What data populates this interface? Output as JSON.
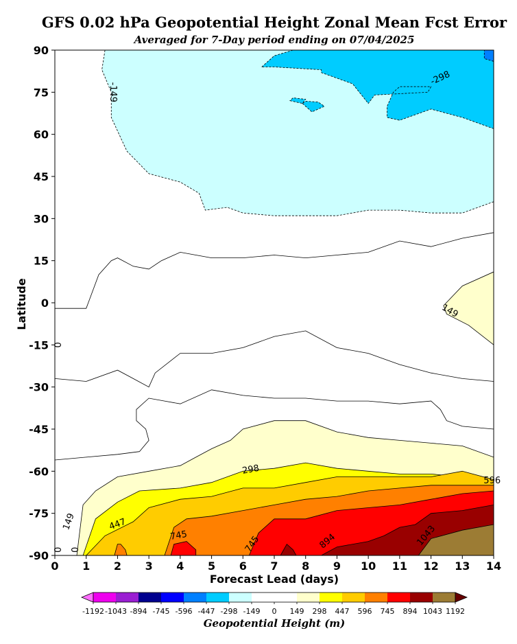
{
  "chart_data": {
    "type": "filled-contour",
    "title": "GFS 0.02 hPa Geopotential Height Zonal Mean Fcst Error",
    "subtitle": "Averaged for 7-Day period ending on 07/04/2025",
    "xlabel": "Forecast Lead (days)",
    "ylabel": "Latitude",
    "x_ticks": [
      "0",
      "1",
      "2",
      "3",
      "4",
      "5",
      "6",
      "7",
      "8",
      "9",
      "10",
      "11",
      "12",
      "13",
      "14"
    ],
    "y_ticks": [
      "90",
      "75",
      "60",
      "45",
      "30",
      "15",
      "0",
      "-15",
      "-30",
      "-45",
      "-60",
      "-75",
      "-90"
    ],
    "xlim": [
      0,
      14
    ],
    "ylim": [
      -90,
      90
    ],
    "colorbar": {
      "label": "Geopotential Height (m)",
      "ticks": [
        "-1192",
        "-1043",
        "-894",
        "-745",
        "-596",
        "-447",
        "-298",
        "-149",
        "0",
        "149",
        "298",
        "447",
        "596",
        "745",
        "894",
        "1043",
        "1192"
      ],
      "colors": [
        "#ee00ee",
        "#9a1ed2",
        "#00008e",
        "#0000ff",
        "#0080ff",
        "#00ccff",
        "#ccffff",
        "#ffffff",
        "#ffffff",
        "#ffffcc",
        "#ffff00",
        "#ffcc00",
        "#ff8000",
        "#ff0000",
        "#990000",
        "#9c7c34"
      ],
      "under_color": "#ff6eff",
      "over_color": "#660000"
    },
    "levels": [
      -1192,
      -1043,
      -894,
      -745,
      -596,
      -447,
      -298,
      -149,
      0,
      149,
      298,
      447,
      596,
      745,
      894,
      1043,
      1192
    ],
    "contour_labels": [
      "-298",
      "-149",
      "0",
      "0",
      "0",
      "149",
      "149",
      "298",
      "447",
      "596",
      "745",
      "745",
      "894",
      "1043"
    ],
    "regions": [
      {
        "level_range": [
          -298,
          -149
        ],
        "color": "#ccffff",
        "outline": [
          [
            1.6,
            90
          ],
          [
            1.5,
            83
          ],
          [
            1.8,
            75
          ],
          [
            1.8,
            66
          ],
          [
            2.3,
            54
          ],
          [
            3,
            46
          ],
          [
            4,
            43
          ],
          [
            4.6,
            39
          ],
          [
            4.8,
            33
          ],
          [
            5.5,
            34
          ],
          [
            6,
            32
          ],
          [
            7,
            31
          ],
          [
            8,
            31
          ],
          [
            9,
            31
          ],
          [
            10,
            33
          ],
          [
            11,
            33
          ],
          [
            12,
            32
          ],
          [
            13,
            32
          ],
          [
            14,
            36
          ],
          [
            14,
            90
          ]
        ]
      },
      {
        "level_range": [
          -447,
          -298
        ],
        "color": "#00ccff",
        "outline": [
          [
            6.6,
            84
          ],
          [
            7,
            88
          ],
          [
            7.6,
            90
          ],
          [
            14,
            90
          ],
          [
            14,
            62
          ],
          [
            13,
            66
          ],
          [
            12,
            69
          ],
          [
            11,
            65
          ],
          [
            10.6,
            66
          ],
          [
            10.6,
            70
          ],
          [
            10.8,
            75
          ],
          [
            11,
            77
          ],
          [
            12,
            77
          ],
          [
            11.9,
            75
          ],
          [
            10.2,
            74
          ],
          [
            10,
            71
          ],
          [
            9.5,
            78
          ],
          [
            8.5,
            82
          ],
          [
            8.5,
            83
          ],
          [
            7,
            84
          ]
        ]
      },
      {
        "level_range": [
          -447,
          -298
        ],
        "color": "#00ccff",
        "outline": [
          [
            7.5,
            72
          ],
          [
            7.9,
            71
          ],
          [
            8,
            72.5
          ],
          [
            7.6,
            73
          ]
        ]
      },
      {
        "level_range": [
          -447,
          -298
        ],
        "color": "#00ccff",
        "outline": [
          [
            7.9,
            71
          ],
          [
            8.2,
            68
          ],
          [
            8.6,
            70
          ],
          [
            8.4,
            71.5
          ],
          [
            8,
            71.8
          ]
        ]
      },
      {
        "level_range": [
          -596,
          -447
        ],
        "color": "#0080ff",
        "outline": [
          [
            13.7,
            90
          ],
          [
            14,
            90
          ],
          [
            14,
            86
          ],
          [
            13.7,
            87
          ]
        ]
      },
      {
        "level_range": [
          149,
          298
        ],
        "color": "#ffffcc",
        "outline": [
          [
            12.4,
            -1
          ],
          [
            13,
            6
          ],
          [
            14,
            11
          ],
          [
            14,
            -15
          ],
          [
            13.2,
            -8
          ],
          [
            12.5,
            -4
          ]
        ]
      },
      {
        "level_range": [
          149,
          298
        ],
        "color": "#ffffcc",
        "outline": [
          [
            0.7,
            -90
          ],
          [
            0.9,
            -72
          ],
          [
            1.3,
            -67
          ],
          [
            2,
            -62
          ],
          [
            3,
            -60
          ],
          [
            4,
            -58
          ],
          [
            4.5,
            -55
          ],
          [
            5,
            -52
          ],
          [
            5.6,
            -49
          ],
          [
            6,
            -45
          ],
          [
            7,
            -42
          ],
          [
            8,
            -42
          ],
          [
            9,
            -46
          ],
          [
            10,
            -48
          ],
          [
            11,
            -49
          ],
          [
            12,
            -50
          ],
          [
            13,
            -51
          ],
          [
            14,
            -55
          ],
          [
            14,
            -90
          ]
        ]
      },
      {
        "level_range": [
          298,
          447
        ],
        "color": "#ffff00",
        "outline": [
          [
            0.9,
            -90
          ],
          [
            1.3,
            -77
          ],
          [
            2,
            -71
          ],
          [
            2.7,
            -67
          ],
          [
            4,
            -66
          ],
          [
            5,
            -64
          ],
          [
            6,
            -60
          ],
          [
            7,
            -59
          ],
          [
            8,
            -57
          ],
          [
            9,
            -59
          ],
          [
            10,
            -60
          ],
          [
            11,
            -61
          ],
          [
            12,
            -61
          ],
          [
            13,
            -62
          ],
          [
            14,
            -63
          ],
          [
            14,
            -90
          ]
        ]
      },
      {
        "level_range": [
          447,
          596
        ],
        "color": "#ffcc00",
        "outline": [
          [
            1.0,
            -90
          ],
          [
            1.6,
            -83
          ],
          [
            2.5,
            -78
          ],
          [
            3,
            -73
          ],
          [
            4,
            -70
          ],
          [
            5,
            -69
          ],
          [
            6,
            -66
          ],
          [
            7,
            -66
          ],
          [
            8,
            -64
          ],
          [
            9,
            -62
          ],
          [
            10,
            -62
          ],
          [
            11,
            -62
          ],
          [
            12,
            -62
          ],
          [
            13,
            -60
          ],
          [
            14,
            -63
          ],
          [
            14,
            -90
          ]
        ]
      },
      {
        "level_range": [
          596,
          745
        ],
        "color": "#ff8000",
        "outline": [
          [
            3.5,
            -90
          ],
          [
            3.8,
            -80
          ],
          [
            4.2,
            -77
          ],
          [
            5,
            -76
          ],
          [
            6,
            -74
          ],
          [
            7,
            -72
          ],
          [
            8,
            -70
          ],
          [
            9,
            -69
          ],
          [
            10,
            -67
          ],
          [
            11,
            -66
          ],
          [
            12,
            -65
          ],
          [
            13,
            -65
          ],
          [
            14,
            -65
          ],
          [
            14,
            -90
          ]
        ]
      },
      {
        "level_range": [
          596,
          745
        ],
        "color": "#ff8000",
        "outline": [
          [
            1.9,
            -90
          ],
          [
            2.0,
            -86
          ],
          [
            2.1,
            -86
          ],
          [
            2.25,
            -88
          ],
          [
            2.3,
            -90
          ]
        ]
      },
      {
        "level_range": [
          745,
          894
        ],
        "color": "#ff0000",
        "outline": [
          [
            6.2,
            -90
          ],
          [
            6.5,
            -82
          ],
          [
            7,
            -77
          ],
          [
            8,
            -77
          ],
          [
            9,
            -74
          ],
          [
            10,
            -73
          ],
          [
            11,
            -72
          ],
          [
            12,
            -70
          ],
          [
            13,
            -68
          ],
          [
            14,
            -67
          ],
          [
            14,
            -90
          ]
        ]
      },
      {
        "level_range": [
          745,
          894
        ],
        "color": "#ff0000",
        "outline": [
          [
            3.7,
            -90
          ],
          [
            3.8,
            -86
          ],
          [
            4.2,
            -85
          ],
          [
            4.5,
            -88
          ],
          [
            4.5,
            -90
          ]
        ]
      },
      {
        "level_range": [
          894,
          1043
        ],
        "color": "#990000",
        "outline": [
          [
            8.5,
            -90
          ],
          [
            9,
            -87
          ],
          [
            10,
            -85
          ],
          [
            10.5,
            -83
          ],
          [
            11,
            -80
          ],
          [
            11.5,
            -79
          ],
          [
            12,
            -75
          ],
          [
            13,
            -74
          ],
          [
            14,
            -72
          ],
          [
            14,
            -90
          ]
        ]
      },
      {
        "level_range": [
          894,
          1043
        ],
        "color": "#990000",
        "outline": [
          [
            7.2,
            -90
          ],
          [
            7.4,
            -86
          ],
          [
            7.6,
            -88
          ],
          [
            7.7,
            -90
          ]
        ]
      },
      {
        "level_range": [
          1043,
          1192
        ],
        "color": "#9c7c34",
        "outline": [
          [
            11.6,
            -90
          ],
          [
            12,
            -84
          ],
          [
            13,
            -81
          ],
          [
            14,
            -79
          ],
          [
            14,
            -90
          ]
        ]
      }
    ],
    "zero_contours": [
      [
        [
          0,
          -2
        ],
        [
          1,
          -2
        ],
        [
          1.1,
          1
        ],
        [
          1.4,
          10
        ],
        [
          1.8,
          15
        ],
        [
          2,
          16
        ],
        [
          2.5,
          13
        ],
        [
          3,
          12
        ],
        [
          3.4,
          15
        ],
        [
          4,
          18
        ],
        [
          4.5,
          17
        ],
        [
          5,
          16
        ],
        [
          6,
          16
        ],
        [
          7,
          17
        ],
        [
          8,
          16
        ],
        [
          9,
          17
        ],
        [
          10,
          18
        ],
        [
          11,
          22
        ],
        [
          12,
          20
        ],
        [
          13,
          23
        ],
        [
          14,
          25
        ]
      ],
      [
        [
          0,
          -27
        ],
        [
          1,
          -28
        ],
        [
          2,
          -24
        ],
        [
          2.5,
          -27
        ],
        [
          3,
          -30
        ],
        [
          3.2,
          -25
        ],
        [
          4,
          -18
        ],
        [
          5,
          -18
        ],
        [
          6,
          -16
        ],
        [
          7,
          -12
        ],
        [
          8,
          -10
        ],
        [
          9,
          -16
        ],
        [
          10,
          -18
        ],
        [
          11,
          -22
        ],
        [
          12,
          -25
        ],
        [
          13,
          -27
        ],
        [
          14,
          -28
        ]
      ],
      [
        [
          0,
          -56
        ],
        [
          1,
          -55
        ],
        [
          2,
          -54
        ],
        [
          2.7,
          -53
        ],
        [
          3,
          -49
        ],
        [
          2.9,
          -45
        ],
        [
          2.6,
          -42
        ],
        [
          2.6,
          -38
        ],
        [
          3,
          -34
        ],
        [
          3.5,
          -35
        ],
        [
          4,
          -36
        ],
        [
          5,
          -31
        ],
        [
          6,
          -33
        ],
        [
          7,
          -34
        ],
        [
          8,
          -34
        ],
        [
          9,
          -35
        ],
        [
          10,
          -35
        ],
        [
          11,
          -36
        ],
        [
          12,
          -35
        ],
        [
          12.3,
          -38
        ],
        [
          12.5,
          -42
        ],
        [
          13,
          -44
        ],
        [
          14,
          -45
        ]
      ]
    ]
  }
}
